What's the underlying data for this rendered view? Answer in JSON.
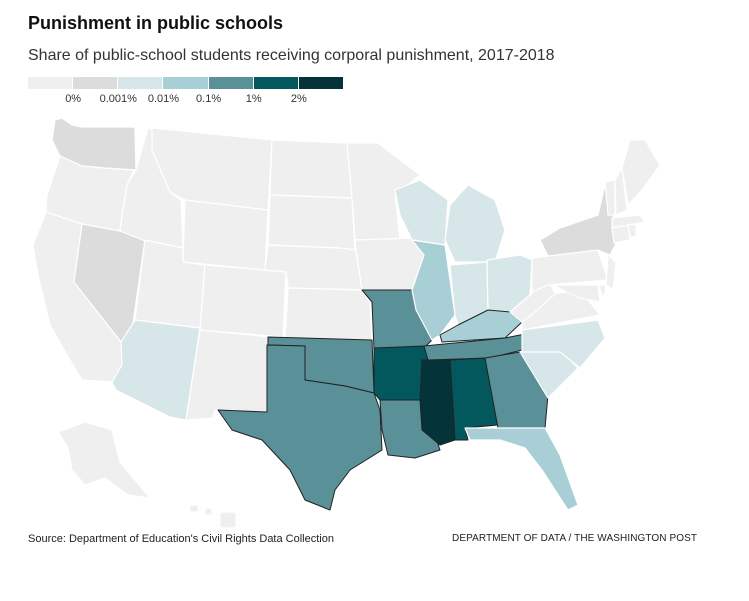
{
  "header": {
    "title": "Punishment in public schools",
    "subtitle": "Share of public-school students receiving corporal punishment, 2017-2018"
  },
  "legend": {
    "ticks": [
      "0%",
      "0.001%",
      "0.01%",
      "0.1%",
      "1%",
      "2%"
    ],
    "colors": [
      "#efefef",
      "#dcdcdc",
      "#d7e6e8",
      "#a8cfd5",
      "#5a9098",
      "#03585d",
      "#04333a"
    ]
  },
  "colors": {
    "no_data": "#efefef",
    "border": "#ffffff",
    "dark_border": "#222222"
  },
  "map_data": {
    "states": [
      {
        "code": "WA",
        "bucket": 1
      },
      {
        "code": "OR",
        "bucket": 0
      },
      {
        "code": "CA",
        "bucket": 0
      },
      {
        "code": "NV",
        "bucket": 1
      },
      {
        "code": "ID",
        "bucket": 0
      },
      {
        "code": "MT",
        "bucket": 0
      },
      {
        "code": "WY",
        "bucket": 0
      },
      {
        "code": "UT",
        "bucket": 0
      },
      {
        "code": "AZ",
        "bucket": 2
      },
      {
        "code": "CO",
        "bucket": 0
      },
      {
        "code": "NM",
        "bucket": 0
      },
      {
        "code": "ND",
        "bucket": 0
      },
      {
        "code": "SD",
        "bucket": 0
      },
      {
        "code": "NE",
        "bucket": 0
      },
      {
        "code": "KS",
        "bucket": 0
      },
      {
        "code": "OK",
        "bucket": 4
      },
      {
        "code": "TX",
        "bucket": 4
      },
      {
        "code": "MN",
        "bucket": 0
      },
      {
        "code": "IA",
        "bucket": 0
      },
      {
        "code": "MO",
        "bucket": 4
      },
      {
        "code": "AR",
        "bucket": 5
      },
      {
        "code": "LA",
        "bucket": 4
      },
      {
        "code": "WI",
        "bucket": 2
      },
      {
        "code": "IL",
        "bucket": 3
      },
      {
        "code": "MI",
        "bucket": 2
      },
      {
        "code": "IN",
        "bucket": 2
      },
      {
        "code": "OH",
        "bucket": 2
      },
      {
        "code": "KY",
        "bucket": 3
      },
      {
        "code": "TN",
        "bucket": 4
      },
      {
        "code": "MS",
        "bucket": 6
      },
      {
        "code": "AL",
        "bucket": 5
      },
      {
        "code": "GA",
        "bucket": 4
      },
      {
        "code": "FL",
        "bucket": 3
      },
      {
        "code": "SC",
        "bucket": 2
      },
      {
        "code": "NC",
        "bucket": 2
      },
      {
        "code": "VA",
        "bucket": 0
      },
      {
        "code": "WV",
        "bucket": 0
      },
      {
        "code": "PA",
        "bucket": 0
      },
      {
        "code": "NY",
        "bucket": 1
      },
      {
        "code": "VT",
        "bucket": 0
      },
      {
        "code": "NH",
        "bucket": 0
      },
      {
        "code": "ME",
        "bucket": 0
      },
      {
        "code": "MA",
        "bucket": 0
      },
      {
        "code": "CT",
        "bucket": 0
      },
      {
        "code": "RI",
        "bucket": 0
      },
      {
        "code": "NJ",
        "bucket": 0
      },
      {
        "code": "DE",
        "bucket": 0
      },
      {
        "code": "MD",
        "bucket": 0
      },
      {
        "code": "AK",
        "bucket": 0
      },
      {
        "code": "HI",
        "bucket": 0
      }
    ]
  },
  "footer": {
    "source": "Source: Department of Education's Civil Rights Data Collection",
    "credit": "DEPARTMENT OF DATA / THE WASHINGTON POST"
  }
}
